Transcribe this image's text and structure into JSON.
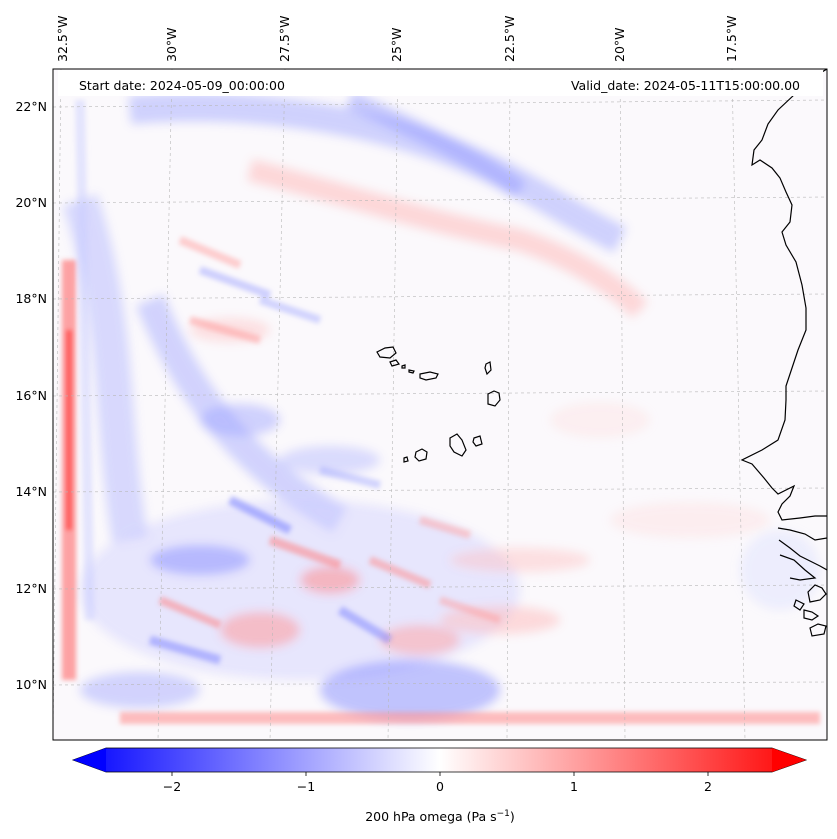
{
  "header": {
    "start_date": "Start date: 2024-05-09_00:00:00",
    "valid_date": "Valid_date: 2024-05-11T15:00:00.00"
  },
  "map": {
    "variable": "200 hPa omega",
    "lon_labels": [
      "32.5°W",
      "30°W",
      "27.5°W",
      "25°W",
      "22.5°W",
      "20°W",
      "17.5°W"
    ],
    "lat_labels": [
      "22°N",
      "20°N",
      "18°N",
      "16°N",
      "14°N",
      "12°N",
      "10°N"
    ],
    "negative_color": "#0000ff",
    "positive_color": "#ff0000",
    "coastline_color": "#000000"
  },
  "colorbar": {
    "tick_labels": [
      "−2",
      "−1",
      "0",
      "1",
      "2"
    ],
    "label_main": "200 hPa omega (Pa s",
    "label_sup": "−1",
    "label_close": ")",
    "range": [
      -2.6,
      2.6
    ]
  }
}
